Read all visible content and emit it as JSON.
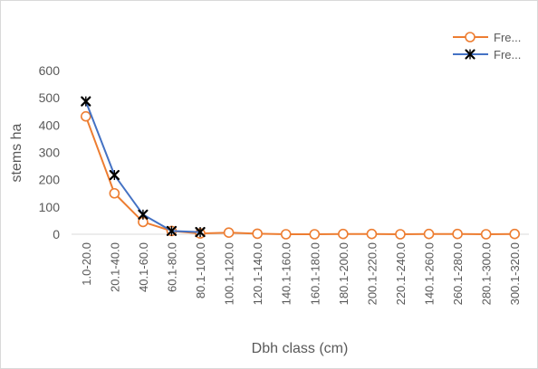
{
  "chart_data": {
    "type": "line",
    "title": "",
    "xlabel": "Dbh class (cm)",
    "ylabel": "stems ha",
    "ylim": [
      0,
      600
    ],
    "yticks": [
      0,
      100,
      200,
      300,
      400,
      500,
      600
    ],
    "grid": false,
    "legend_position": "top-right",
    "categories": [
      "1.0-20.0",
      "20.1-40.0",
      "40.1-60.0",
      "60.1-80.0",
      "80.1-100.0",
      "100.1-120.0",
      "120.1-140.0",
      "140.1-160.0",
      "160.1-180.0",
      "180.1-200.0",
      "200.1-220.0",
      "220.1-240.0",
      "140.1-260.0",
      "260.1-280.0",
      "280.1-300.0",
      "300.1-320.0"
    ],
    "series": [
      {
        "name": "Fre...",
        "color": "#ED7D31",
        "marker": "circle",
        "values": [
          432,
          150,
          45,
          12,
          3,
          6,
          2,
          0,
          0,
          1,
          1,
          0,
          1,
          1,
          0,
          1
        ]
      },
      {
        "name": "Fre...",
        "color": "#4472C4",
        "marker": "asterisk",
        "values": [
          487,
          217,
          72,
          12,
          8,
          null,
          null,
          null,
          null,
          null,
          null,
          null,
          null,
          null,
          null,
          null
        ]
      }
    ]
  }
}
